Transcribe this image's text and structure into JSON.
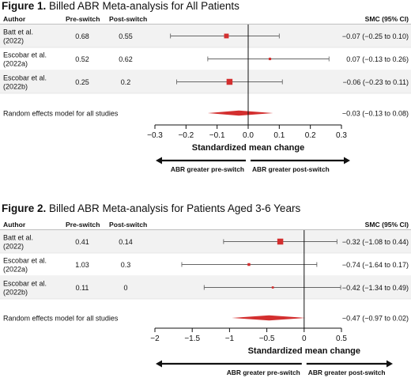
{
  "chart_data": [
    {
      "type": "forest",
      "title_bold": "Figure 1.",
      "title_rest": " Billed ABR Meta-analysis for All Patients",
      "columns": {
        "author": "Author",
        "pre": "Pre-switch",
        "post": "Post-switch",
        "smc": "SMC (95% CI)"
      },
      "studies": [
        {
          "author_lines": [
            "Batt et al.",
            "(2022)"
          ],
          "pre": "0.68",
          "post": "0.55",
          "smc_text": "−0.07 (−0.25 to 0.10)",
          "est": -0.07,
          "lo": -0.25,
          "hi": 0.1,
          "weight": 0.55
        },
        {
          "author_lines": [
            "Escobar et al.",
            "(2022a)"
          ],
          "pre": "0.52",
          "post": "0.62",
          "smc_text": "0.07 (−0.13 to 0.26)",
          "est": 0.07,
          "lo": -0.13,
          "hi": 0.26,
          "weight": 0.2
        },
        {
          "author_lines": [
            "Escobar et al.",
            "(2022b)"
          ],
          "pre": "0.25",
          "post": "0.2",
          "smc_text": "−0.06 (−0.23 to 0.11)",
          "est": -0.06,
          "lo": -0.23,
          "hi": 0.11,
          "weight": 0.75
        }
      ],
      "pooled": {
        "label": "Random effects model for all studies",
        "smc_text": "−0.03 (−0.13 to 0.08)",
        "est": -0.03,
        "lo": -0.13,
        "hi": 0.08
      },
      "xlim": [
        -0.3,
        0.3
      ],
      "ticks": [
        -0.3,
        -0.2,
        -0.1,
        0,
        0.1,
        0.2,
        0.3
      ],
      "tick_labels": [
        "−0.3",
        "−0.2",
        "−0.1",
        "0.0",
        "0.1",
        "0.2",
        "0.3"
      ],
      "xlabel": "Standardized mean change",
      "left_direction": "ABR greater pre-switch",
      "right_direction": "ABR greater post-switch",
      "marker_color": "#d32f2f"
    },
    {
      "type": "forest",
      "title_bold": "Figure 2.",
      "title_rest": " Billed ABR Meta-analysis for Patients Aged 3-6 Years",
      "columns": {
        "author": "Author",
        "pre": "Pre-switch",
        "post": "Post-switch",
        "smc": "SMC (95% CI)"
      },
      "studies": [
        {
          "author_lines": [
            "Batt et al.",
            "(2022)"
          ],
          "pre": "0.41",
          "post": "0.14",
          "smc_text": "−0.32 (−1.08 to 0.44)",
          "est": -0.32,
          "lo": -1.08,
          "hi": 0.44,
          "weight": 0.75
        },
        {
          "author_lines": [
            "Escobar et al.",
            "(2022a)"
          ],
          "pre": "1.03",
          "post": "0.3",
          "smc_text": "−0.74 (−1.64 to 0.17)",
          "est": -0.74,
          "lo": -1.64,
          "hi": 0.17,
          "weight": 0.25
        },
        {
          "author_lines": [
            "Escobar et al.",
            "(2022b)"
          ],
          "pre": "0.11",
          "post": "0",
          "smc_text": "−0.42 (−1.34 to 0.49)",
          "est": -0.42,
          "lo": -1.34,
          "hi": 0.49,
          "weight": 0.15
        }
      ],
      "pooled": {
        "label": "Random effects model for all studies",
        "smc_text": "−0.47 (−0.97 to 0.02)",
        "est": -0.47,
        "lo": -0.97,
        "hi": 0.02
      },
      "xlim": [
        -2,
        0.5
      ],
      "ticks": [
        -2,
        -1.5,
        -1,
        -0.5,
        0,
        0.5
      ],
      "tick_labels": [
        "−2",
        "−1.5",
        "−1",
        "−0.5",
        "0",
        "0.5"
      ],
      "xlabel": "Standardized mean change",
      "left_direction": "ABR greater pre-switch",
      "right_direction": "ABR greater post-switch",
      "marker_color": "#d32f2f"
    }
  ]
}
